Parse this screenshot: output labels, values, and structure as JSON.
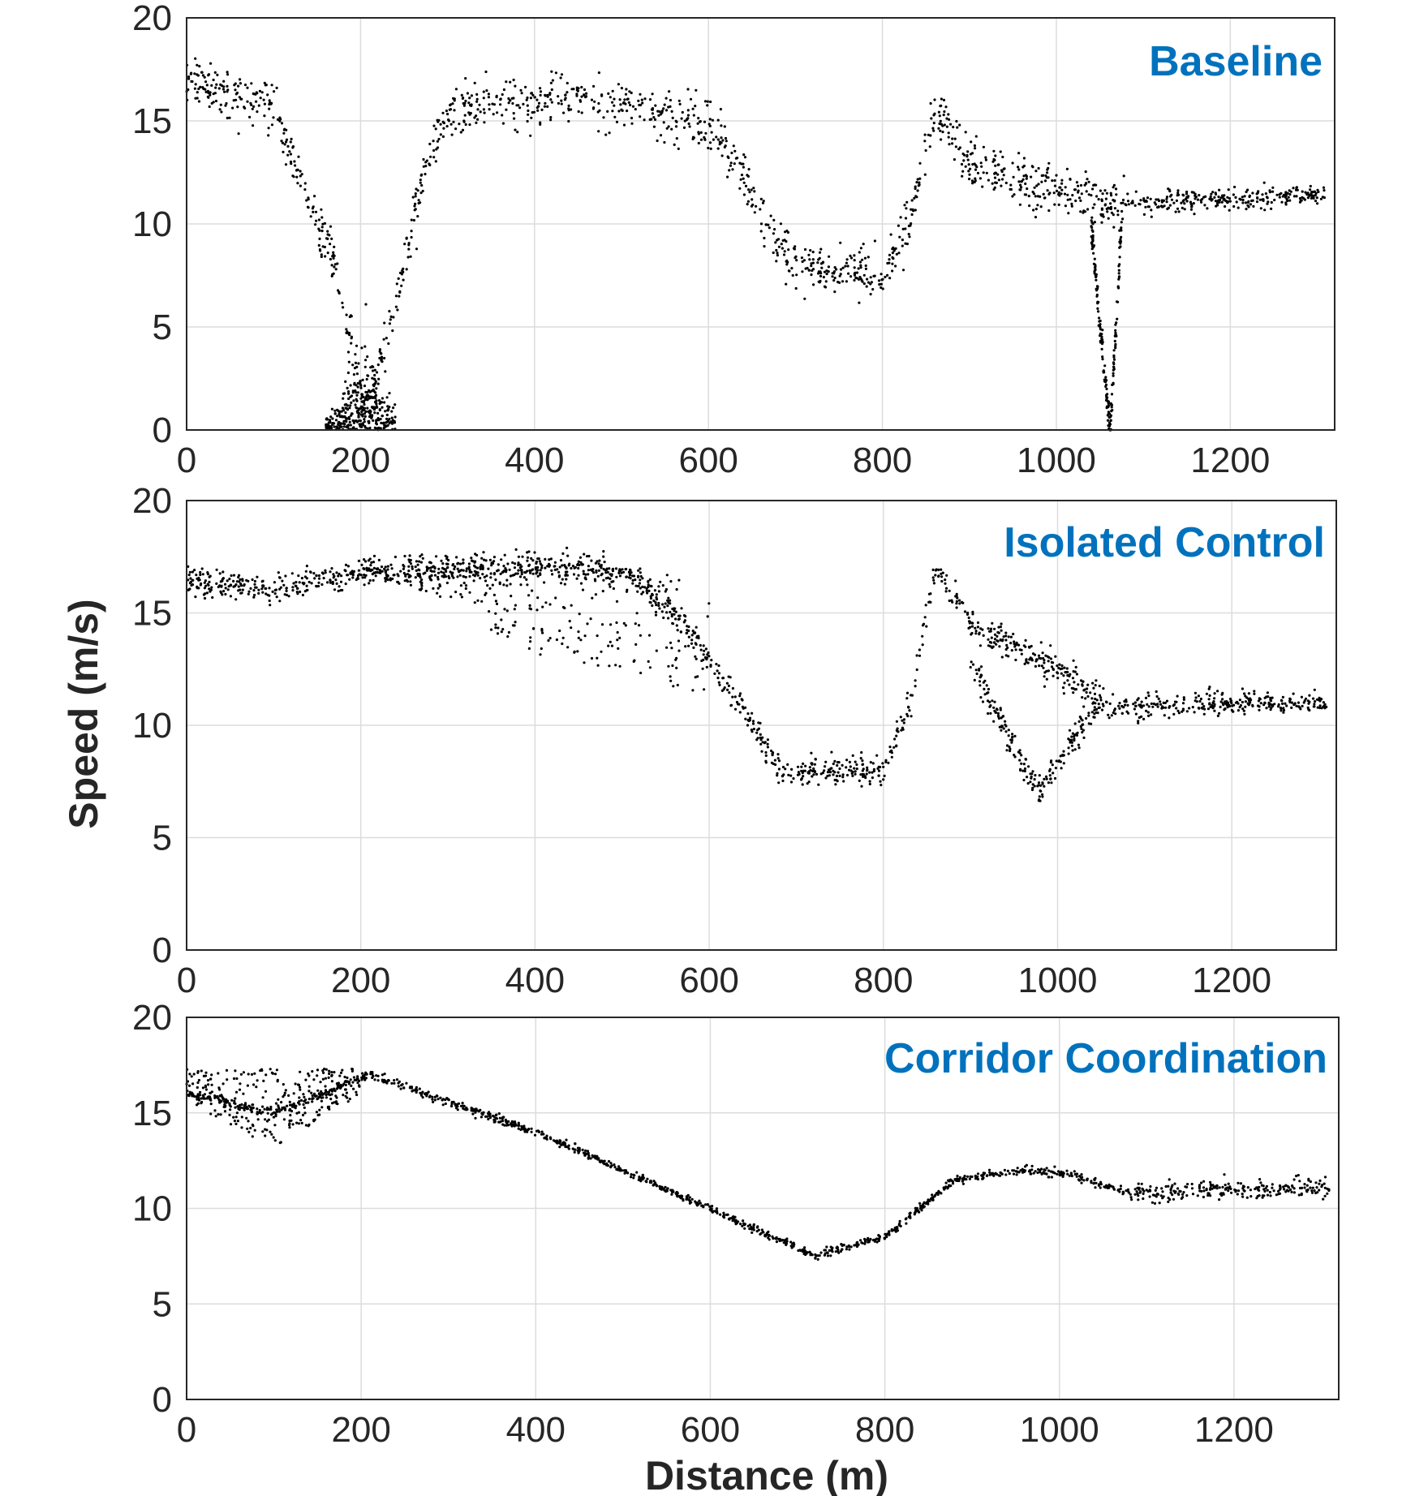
{
  "figure": {
    "ylabel": "Speed (m/s)",
    "xlabel": "Distance (m)",
    "title_color": "#0072BD",
    "marker_color": "#000000",
    "grid_color": "#dcdcdc",
    "axis_color": "#262626"
  },
  "chart_data": [
    {
      "type": "scatter",
      "title": "Baseline",
      "xlim": [
        0,
        1320
      ],
      "ylim": [
        0,
        20
      ],
      "xticks": [
        0,
        200,
        400,
        600,
        800,
        1000,
        1200
      ],
      "yticks": [
        0,
        5,
        10,
        15,
        20
      ],
      "xlabel": "",
      "ylabel": "",
      "grid": true,
      "trend": [
        [
          0,
          17
        ],
        [
          100,
          15.5
        ],
        [
          170,
          8
        ],
        [
          205,
          1
        ],
        [
          240,
          6
        ],
        [
          270,
          12
        ],
        [
          300,
          15.5
        ],
        [
          400,
          16
        ],
        [
          500,
          15.8
        ],
        [
          600,
          14.8
        ],
        [
          640,
          12.5
        ],
        [
          670,
          9.5
        ],
        [
          700,
          8
        ],
        [
          800,
          7.5
        ],
        [
          830,
          10
        ],
        [
          860,
          15.5
        ],
        [
          900,
          13
        ],
        [
          1000,
          11.5
        ],
        [
          1100,
          11
        ],
        [
          1200,
          11.2
        ],
        [
          1310,
          11.5
        ]
      ],
      "dip": [
        [
          1040,
          10
        ],
        [
          1055,
          3
        ],
        [
          1062,
          0
        ],
        [
          1075,
          10
        ]
      ]
    },
    {
      "type": "scatter",
      "title": "Isolated Control",
      "xlim": [
        0,
        1320
      ],
      "ylim": [
        0,
        20
      ],
      "xticks": [
        0,
        200,
        400,
        600,
        800,
        1000,
        1200
      ],
      "yticks": [
        0,
        5,
        10,
        15,
        20
      ],
      "xlabel": "",
      "ylabel": "",
      "grid": true,
      "trend": [
        [
          0,
          16.5
        ],
        [
          100,
          16
        ],
        [
          200,
          16.8
        ],
        [
          300,
          17
        ],
        [
          500,
          17
        ],
        [
          550,
          15.5
        ],
        [
          600,
          13
        ],
        [
          650,
          10
        ],
        [
          680,
          8
        ],
        [
          800,
          8
        ],
        [
          830,
          11
        ],
        [
          860,
          17
        ],
        [
          900,
          14.5
        ],
        [
          1000,
          12.5
        ],
        [
          1060,
          10.8
        ],
        [
          1200,
          11
        ],
        [
          1310,
          11
        ]
      ],
      "upper_band": [
        [
          200,
          17
        ],
        [
          350,
          17
        ],
        [
          500,
          16.8
        ]
      ],
      "lower_band": [
        [
          200,
          17
        ],
        [
          300,
          15.5
        ],
        [
          400,
          13
        ],
        [
          500,
          12.5
        ],
        [
          600,
          11
        ]
      ],
      "dip": [
        [
          900,
          13
        ],
        [
          950,
          9
        ],
        [
          980,
          7
        ],
        [
          1010,
          9
        ],
        [
          1050,
          11
        ]
      ]
    },
    {
      "type": "scatter",
      "title": "Corridor Coordination",
      "xlim": [
        0,
        1320
      ],
      "ylim": [
        0,
        20
      ],
      "xticks": [
        0,
        200,
        400,
        600,
        800,
        1000,
        1200
      ],
      "yticks": [
        0,
        5,
        10,
        15,
        20
      ],
      "xlabel": "",
      "ylabel": "",
      "grid": true,
      "trend": [
        [
          0,
          16
        ],
        [
          100,
          15
        ],
        [
          210,
          17
        ],
        [
          400,
          14
        ],
        [
          600,
          10
        ],
        [
          720,
          7.5
        ],
        [
          800,
          8.5
        ],
        [
          880,
          11.5
        ],
        [
          960,
          12
        ],
        [
          1010,
          11.8
        ],
        [
          1080,
          10.8
        ],
        [
          1200,
          11
        ],
        [
          1310,
          11
        ]
      ],
      "spread": [
        [
          0,
          15.5
        ],
        [
          100,
          13.2
        ],
        [
          200,
          16
        ]
      ]
    }
  ]
}
